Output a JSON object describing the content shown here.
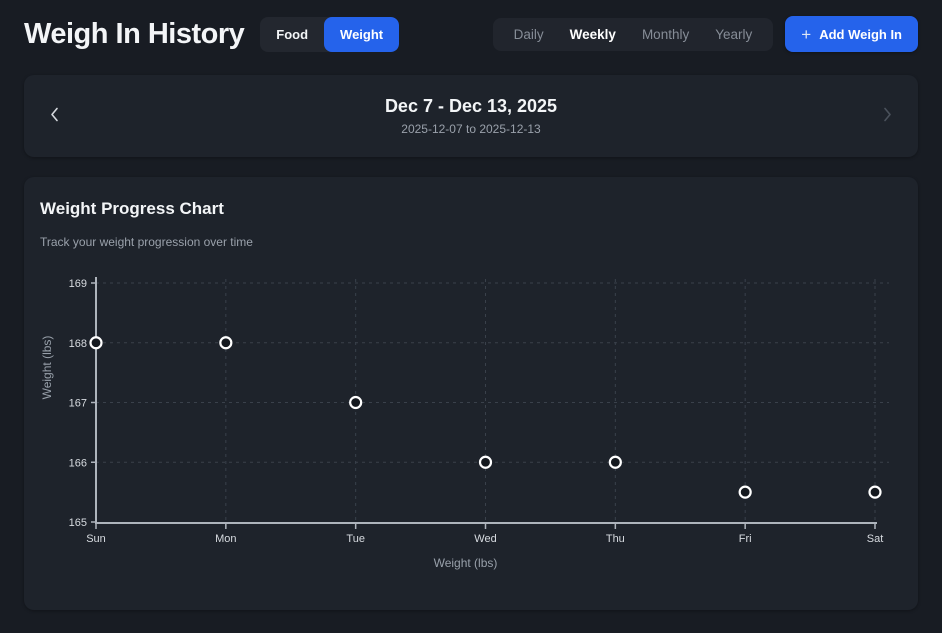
{
  "colors": {
    "page_bg": "#181c23",
    "card_bg": "#1e232b",
    "accent_blue": "#2563eb",
    "muted_text": "#9aa1ab",
    "axis": "#aeb4bc",
    "gridline": "#3a414b",
    "point_fill": "#14181e",
    "point_stroke": "#ffffff"
  },
  "header": {
    "title": "Weigh In History",
    "mode_toggle": [
      {
        "label": "Food",
        "active": false
      },
      {
        "label": "Weight",
        "active": true
      }
    ],
    "period_tabs": [
      {
        "label": "Daily",
        "active": false
      },
      {
        "label": "Weekly",
        "active": true
      },
      {
        "label": "Monthly",
        "active": false
      },
      {
        "label": "Yearly",
        "active": false
      }
    ],
    "add_button": {
      "label": "Add Weigh In",
      "icon": "plus-icon",
      "plus_glyph": "+"
    }
  },
  "date_nav": {
    "title": "Dec 7 - Dec 13, 2025",
    "subtitle": "2025-12-07 to 2025-12-13",
    "prev_icon": "chevron-left-icon",
    "next_icon": "chevron-right-icon"
  },
  "chart_card": {
    "title": "Weight Progress Chart",
    "subtitle": "Track your weight progression over time"
  },
  "chart_data": {
    "type": "scatter",
    "title": "Weight Progress Chart",
    "categories": [
      "Sun",
      "Mon",
      "Tue",
      "Wed",
      "Thu",
      "Fri",
      "Sat"
    ],
    "values": [
      168,
      168,
      167,
      166,
      166,
      165.5,
      165.5
    ],
    "xlabel": "Weight (lbs)",
    "ylabel": "Weight (lbs)",
    "ylim": [
      165,
      169
    ],
    "yticks": [
      165,
      166,
      167,
      168,
      169
    ],
    "grid": true,
    "legend": false
  }
}
